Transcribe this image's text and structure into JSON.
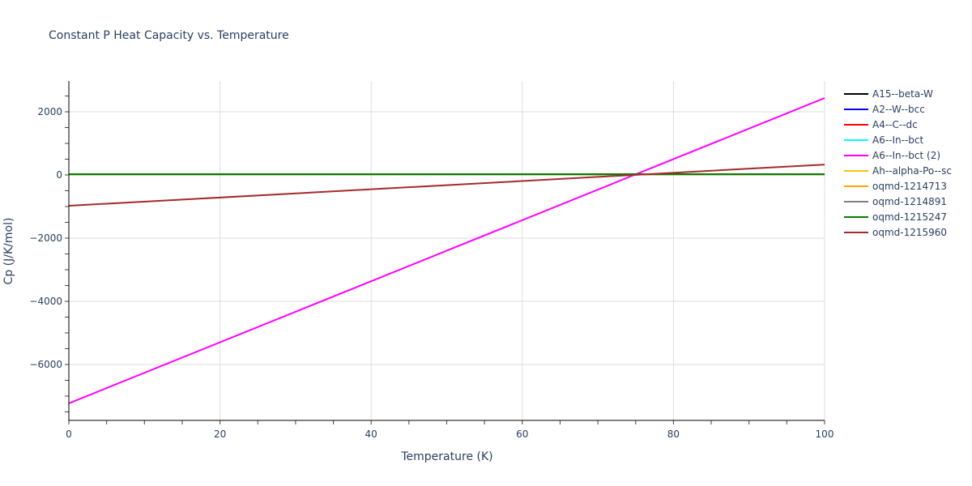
{
  "chart_data": {
    "type": "line",
    "title": "Constant P Heat Capacity vs. Temperature",
    "xlabel": "Temperature (K)",
    "ylabel": "Cp (J/K/mol)",
    "xlim": [
      0,
      100
    ],
    "ylim": [
      -7770,
      2975
    ],
    "x_ticks": [
      0,
      20,
      40,
      60,
      80,
      100
    ],
    "y_ticks": [
      2000,
      0,
      -2000,
      -4000,
      -6000
    ],
    "y_tick_labels": [
      "2000",
      "0",
      "−2000",
      "−4000",
      "−6000"
    ],
    "grid": true,
    "legend_position": "right",
    "x": [
      0,
      100
    ],
    "series": [
      {
        "name": "A15--beta-W",
        "color": "#000000",
        "values": [
          20,
          20
        ]
      },
      {
        "name": "A2--W--bcc",
        "color": "#0000ff",
        "values": [
          20,
          20
        ]
      },
      {
        "name": "A4--C--dc",
        "color": "#ff0000",
        "values": [
          20,
          20
        ]
      },
      {
        "name": "A6--In--bct",
        "color": "#00ffff",
        "values": [
          20,
          20
        ]
      },
      {
        "name": "A6--In--bct (2)",
        "color": "#ff00ff",
        "values": [
          -7230,
          2435
        ]
      },
      {
        "name": "Ah--alpha-Po--sc",
        "color": "#f5c518",
        "values": [
          20,
          20
        ]
      },
      {
        "name": "oqmd-1214713",
        "color": "#ffa500",
        "values": [
          20,
          20
        ]
      },
      {
        "name": "oqmd-1214891",
        "color": "#808080",
        "values": [
          20,
          20
        ]
      },
      {
        "name": "oqmd-1215247",
        "color": "#008000",
        "values": [
          25,
          25
        ]
      },
      {
        "name": "oqmd-1215960",
        "color": "#a52a2a",
        "values": [
          -975,
          330
        ]
      }
    ]
  }
}
